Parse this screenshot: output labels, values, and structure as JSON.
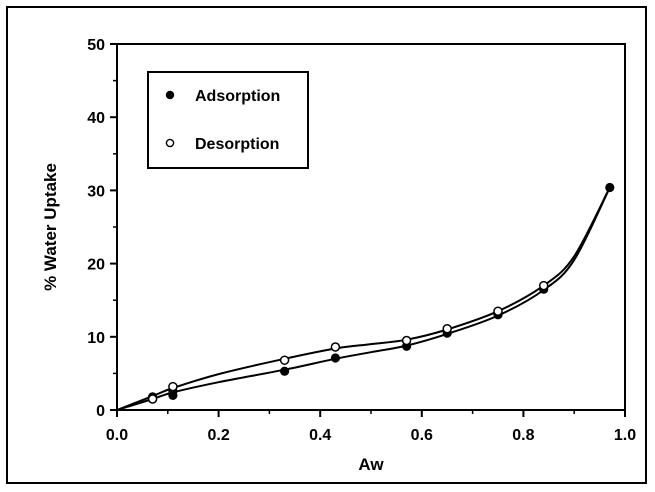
{
  "chart_data": {
    "type": "scatter",
    "xlabel": "Aw",
    "ylabel": "% Water Uptake",
    "xlim": [
      0.0,
      1.0
    ],
    "ylim": [
      0,
      50
    ],
    "xticks": [
      "0.0",
      "0.2",
      "0.4",
      "0.6",
      "0.8",
      "1.0"
    ],
    "yticks": [
      "0",
      "10",
      "20",
      "30",
      "40",
      "50"
    ],
    "grid": false,
    "legend_position": "top-left",
    "series": [
      {
        "name": "Adsorption",
        "marker": "filled-circle",
        "color": "#000000",
        "x": [
          0.07,
          0.11,
          0.11,
          0.33,
          0.43,
          0.57,
          0.65,
          0.75,
          0.84,
          0.97
        ],
        "y": [
          1.8,
          2.0,
          2.6,
          5.3,
          7.1,
          8.7,
          10.5,
          13.0,
          16.5,
          30.4
        ],
        "fit_curve": [
          [
            0.0,
            0.0
          ],
          [
            0.07,
            1.5
          ],
          [
            0.11,
            2.4
          ],
          [
            0.2,
            3.8
          ],
          [
            0.33,
            5.5
          ],
          [
            0.43,
            7.0
          ],
          [
            0.5,
            7.9
          ],
          [
            0.57,
            8.8
          ],
          [
            0.65,
            10.4
          ],
          [
            0.75,
            12.9
          ],
          [
            0.84,
            16.4
          ],
          [
            0.9,
            20.5
          ],
          [
            0.97,
            30.4
          ]
        ]
      },
      {
        "name": "Desorption",
        "marker": "open-circle",
        "color": "#000000",
        "x": [
          0.07,
          0.11,
          0.33,
          0.43,
          0.57,
          0.65,
          0.75,
          0.84
        ],
        "y": [
          1.5,
          3.2,
          6.8,
          8.6,
          9.5,
          11.1,
          13.5,
          17.0
        ],
        "fit_curve": [
          [
            0.0,
            0.0
          ],
          [
            0.07,
            1.9
          ],
          [
            0.11,
            3.0
          ],
          [
            0.2,
            4.9
          ],
          [
            0.33,
            7.0
          ],
          [
            0.43,
            8.4
          ],
          [
            0.5,
            9.0
          ],
          [
            0.57,
            9.6
          ],
          [
            0.65,
            11.0
          ],
          [
            0.75,
            13.5
          ],
          [
            0.84,
            17.0
          ],
          [
            0.9,
            21.0
          ],
          [
            0.97,
            30.4
          ]
        ]
      }
    ]
  }
}
